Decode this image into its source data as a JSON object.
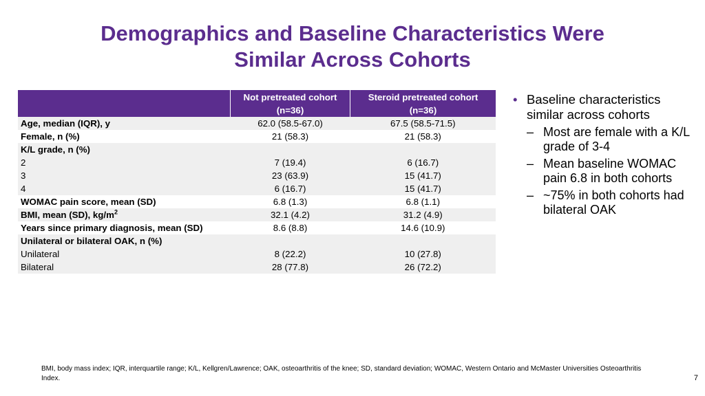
{
  "title": {
    "line1": "Demographics and Baseline Characteristics Were",
    "line2": "Similar Across Cohorts"
  },
  "table": {
    "headers": [
      {
        "line1": "",
        "line2": ""
      },
      {
        "line1": "Not pretreated cohort",
        "line2": "(n=36)"
      },
      {
        "line1": "Steroid pretreated cohort",
        "line2": "(n=36)"
      }
    ],
    "rows": [
      {
        "label": "Age, median (IQR), y",
        "v1": "62.0 (58.5-67.0)",
        "v2": "67.5 (58.5-71.5)"
      },
      {
        "label": "Female, n (%)",
        "v1": "21 (58.3)",
        "v2": "21 (58.3)"
      },
      {
        "label": "K/L grade, n (%)",
        "v1": "",
        "v2": ""
      },
      {
        "label": "2",
        "v1": "7 (19.4)",
        "v2": "6 (16.7)"
      },
      {
        "label": "3",
        "v1": "23 (63.9)",
        "v2": "15 (41.7)"
      },
      {
        "label": "4",
        "v1": "6 (16.7)",
        "v2": "15 (41.7)"
      },
      {
        "label": "WOMAC pain score, mean (SD)",
        "v1": "6.8 (1.3)",
        "v2": "6.8 (1.1)"
      },
      {
        "label": "BMI, mean (SD), kg/m",
        "sup": "2",
        "v1": "32.1 (4.2)",
        "v2": "31.2 (4.9)"
      },
      {
        "label": "Years since primary diagnosis, mean (SD)",
        "v1": "8.6 (8.8)",
        "v2": "14.6 (10.9)"
      },
      {
        "label": "Unilateral or bilateral OAK, n (%)",
        "v1": "",
        "v2": ""
      },
      {
        "label": "Unilateral",
        "v1": "8 (22.2)",
        "v2": "10 (27.8)"
      },
      {
        "label": "Bilateral",
        "v1": "28 (77.8)",
        "v2": "26 (72.2)"
      }
    ]
  },
  "bullets": {
    "main": "Baseline characteristics similar across cohorts",
    "subs": [
      "Most are female with a K/L grade of 3-4",
      "Mean baseline WOMAC pain 6.8 in both cohorts",
      "~75% in both cohorts had bilateral OAK"
    ]
  },
  "footnote": "BMI, body mass index; IQR, interquartile range; K/L, Kellgren/Lawrence; OAK, osteoarthritis of the knee; SD, standard deviation; WOMAC, Western Ontario and McMaster Universities Osteoarthritis Index.",
  "page_number": "7",
  "colors": {
    "accent": "#5b2d8e",
    "row_shade": "#efefef"
  }
}
